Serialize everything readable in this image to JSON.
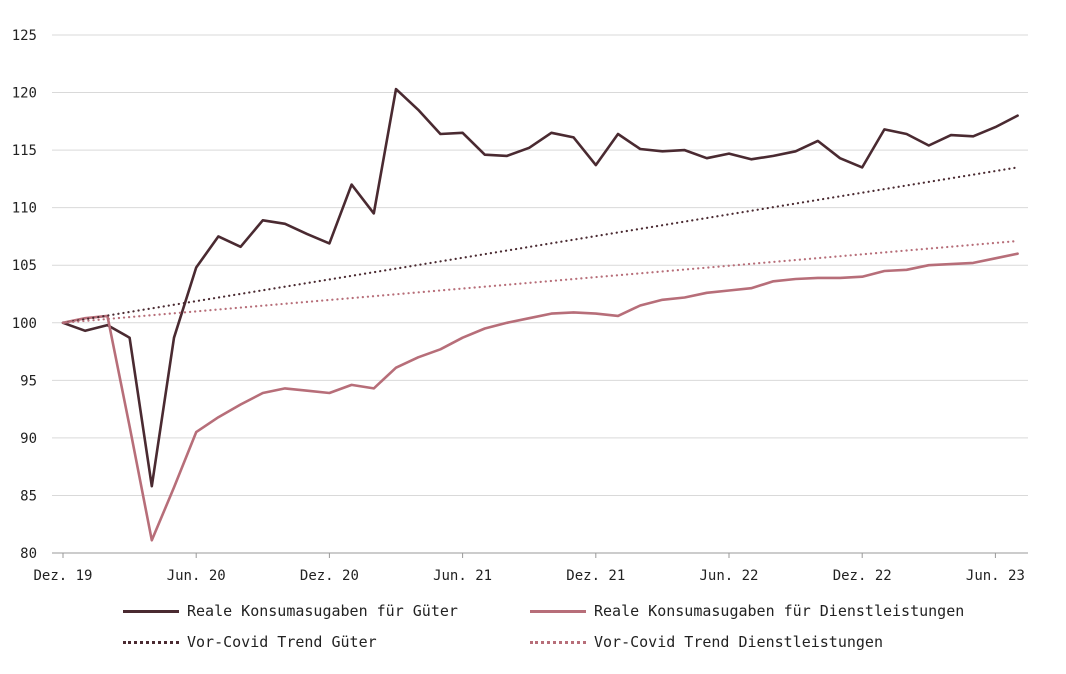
{
  "chart_data": {
    "type": "line",
    "title": "",
    "xlabel": "",
    "ylabel": "",
    "ylim": [
      80,
      125
    ],
    "yticks": [
      "80",
      "85",
      "90",
      "95",
      "100",
      "105",
      "110",
      "115",
      "120",
      "125"
    ],
    "xticks": [
      {
        "index": 0,
        "label": "Dez. 19"
      },
      {
        "index": 6,
        "label": "Jun. 20"
      },
      {
        "index": 12,
        "label": "Dez. 20"
      },
      {
        "index": 18,
        "label": "Jun. 21"
      },
      {
        "index": 24,
        "label": "Dez. 21"
      },
      {
        "index": 30,
        "label": "Jun. 22"
      },
      {
        "index": 36,
        "label": "Dez. 22"
      },
      {
        "index": 42,
        "label": "Jun. 23"
      }
    ],
    "series": [
      {
        "name": "Reale Konsumasugaben für Güter",
        "style": "solid",
        "color": "#4a2a31",
        "values": [
          100,
          99.3,
          99.8,
          98.7,
          85.8,
          98.7,
          104.8,
          107.5,
          106.6,
          108.9,
          108.6,
          107.7,
          106.9,
          112.0,
          109.5,
          120.3,
          118.5,
          116.4,
          116.5,
          114.6,
          114.5,
          115.2,
          116.5,
          116.1,
          113.7,
          116.4,
          115.1,
          114.9,
          115.0,
          114.3,
          114.7,
          114.2,
          114.5,
          114.9,
          115.8,
          114.3,
          113.5,
          116.8,
          116.4,
          115.4,
          116.3,
          116.2,
          117.0,
          118.0
        ]
      },
      {
        "name": "Reale Konsumasugaben für Dienstleistungen",
        "style": "solid",
        "color": "#b76e79",
        "values": [
          100,
          100.4,
          100.6,
          91.0,
          81.1,
          85.7,
          90.5,
          91.8,
          92.9,
          93.9,
          94.3,
          94.1,
          93.9,
          94.6,
          94.3,
          96.1,
          97.0,
          97.7,
          98.7,
          99.5,
          100.0,
          100.4,
          100.8,
          100.9,
          100.8,
          100.6,
          101.5,
          102.0,
          102.2,
          102.6,
          102.8,
          103.0,
          103.6,
          103.8,
          103.9,
          103.9,
          104.0,
          104.5,
          104.6,
          105.0,
          105.1,
          105.2,
          105.6,
          106.0
        ]
      },
      {
        "name": "Vor-Covid Trend Güter",
        "style": "dotted",
        "color": "#4a2a31",
        "values": [
          100,
          113.5
        ]
      },
      {
        "name": "Vor-Covid Trend Dienstleistungen",
        "style": "dotted",
        "color": "#b76e79",
        "values": [
          100,
          107.1
        ]
      }
    ],
    "legend_position": "bottom"
  }
}
